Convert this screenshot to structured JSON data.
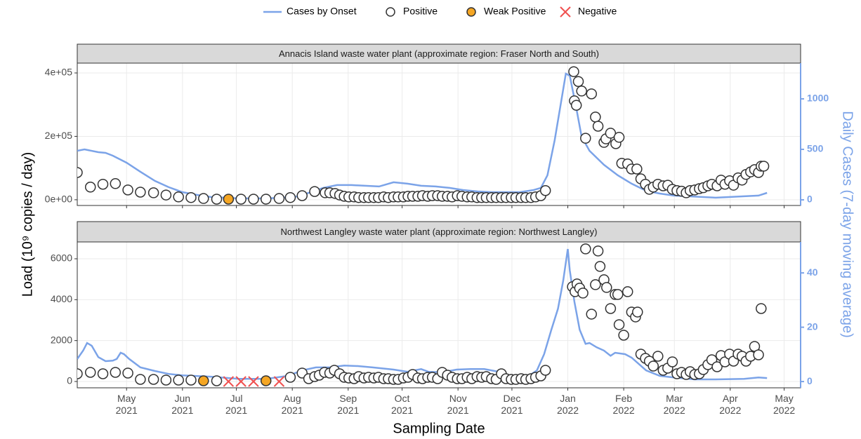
{
  "chart_data": {
    "type": "scatter",
    "x_label": "Sampling Date",
    "y_label": "Load (10⁹ copies / day)",
    "y2_label": "Daily Cases (7-day moving average)",
    "grid": true,
    "legend": "top",
    "xlim": [
      2021.254,
      2022.354
    ],
    "xticks": [
      {
        "value": 2021.329,
        "label": "May\n2021"
      },
      {
        "value": 2021.414,
        "label": "Jun\n2021"
      },
      {
        "value": 2021.496,
        "label": "Jul\n2021"
      },
      {
        "value": 2021.581,
        "label": "Aug\n2021"
      },
      {
        "value": 2021.666,
        "label": "Sep\n2021"
      },
      {
        "value": 2021.748,
        "label": "Oct\n2021"
      },
      {
        "value": 2021.833,
        "label": "Nov\n2021"
      },
      {
        "value": 2021.915,
        "label": "Dec\n2021"
      },
      {
        "value": 2022.0,
        "label": "Jan\n2022"
      },
      {
        "value": 2022.085,
        "label": "Feb\n2022"
      },
      {
        "value": 2022.162,
        "label": "Mar\n2022"
      },
      {
        "value": 2022.247,
        "label": "Apr\n2022"
      },
      {
        "value": 2022.329,
        "label": "May\n2022"
      }
    ],
    "series": [
      {
        "name": "Cases by Onset",
        "color": "#7ba3e8",
        "marker": "line"
      },
      {
        "name": "Positive",
        "color": "#ffffff",
        "marker": "circle"
      },
      {
        "name": "Weak Positive",
        "color": "#f5a623",
        "marker": "circle"
      },
      {
        "name": "Negative",
        "color": "#f0504f",
        "marker": "x"
      }
    ],
    "panels": [
      {
        "title": "Annacis Island waste water plant (approximate region: Fraser North and South)",
        "ylim": [
          -18000,
          431000
        ],
        "yticks": [
          {
            "value": 0,
            "label": "0e+00"
          },
          {
            "value": 200000,
            "label": "2e+05"
          },
          {
            "value": 400000,
            "label": "4e+05"
          }
        ],
        "y2lim": [
          -56,
          1354
        ],
        "y2ticks": [
          0,
          500,
          1000
        ],
        "series": [
          {
            "axis": "y2",
            "x": [
              2021.254,
              2021.265,
              2021.286,
              2021.297,
              2021.308,
              2021.329,
              2021.35,
              2021.372,
              2021.393,
              2021.414,
              2021.436,
              2021.457,
              2021.5,
              2021.542,
              2021.585,
              2021.606,
              2021.628,
              2021.649,
              2021.671,
              2021.692,
              2021.713,
              2021.735,
              2021.756,
              2021.777,
              2021.799,
              2021.82,
              2021.841,
              2021.863,
              2021.884,
              2021.905,
              2021.927,
              2021.948,
              2021.959,
              2021.969,
              2021.98,
              2021.989,
              2021.997,
              2022.003,
              2022.012,
              2022.021,
              2022.033,
              2022.055,
              2022.076,
              2022.097,
              2022.119,
              2022.14,
              2022.161,
              2022.183,
              2022.204,
              2022.225,
              2022.247,
              2022.268,
              2022.29,
              2022.303
            ],
            "values": [
              486,
              500,
              472,
              465,
              437,
              368,
              278,
              188,
              125,
              76,
              49,
              28,
              14,
              14,
              28,
              69,
              118,
              146,
              146,
              139,
              132,
              174,
              160,
              139,
              132,
              118,
              97,
              83,
              76,
              76,
              76,
              97,
              118,
              243,
              590,
              938,
              1250,
              1229,
              938,
              625,
              486,
              347,
              243,
              160,
              90,
              62,
              42,
              35,
              28,
              21,
              28,
              35,
              42,
              69
            ]
          },
          {
            "x": [
              2021.254,
              2021.274,
              2021.293,
              2021.312,
              2021.331,
              2021.35,
              2021.37,
              2021.389,
              2021.408,
              2021.427,
              2021.446,
              2021.466,
              2021.503,
              2021.522,
              2021.541,
              2021.561,
              2021.578,
              2021.596,
              2021.615,
              2021.631,
              2021.638,
              2021.646,
              2021.653,
              2021.66,
              2021.667,
              2021.675,
              2021.682,
              2021.69,
              2021.697,
              2021.705,
              2021.712,
              2021.72,
              2021.727,
              2021.735,
              2021.742,
              2021.75,
              2021.757,
              2021.764,
              2021.772,
              2021.779,
              2021.787,
              2021.794,
              2021.802,
              2021.809,
              2021.817,
              2021.824,
              2021.832,
              2021.839,
              2021.847,
              2021.854,
              2021.862,
              2021.869,
              2021.876,
              2021.884,
              2021.891,
              2021.899,
              2021.906,
              2021.914,
              2021.921,
              2021.929,
              2021.936,
              2021.944,
              2021.951,
              2021.959,
              2021.966,
              2022.009,
              2022.01,
              2022.013,
              2022.016,
              2022.021,
              2022.027,
              2022.036,
              2022.042,
              2022.046,
              2022.055,
              2022.058,
              2022.065,
              2022.073,
              2022.078,
              2022.082,
              2022.091,
              2022.097,
              2022.105,
              2022.111,
              2022.118,
              2022.124,
              2022.13,
              2022.137,
              2022.145,
              2022.152,
              2022.159,
              2022.166,
              2022.173,
              2022.18,
              2022.186,
              2022.193,
              2022.2,
              2022.206,
              2022.213,
              2022.219,
              2022.227,
              2022.233,
              2022.239,
              2022.246,
              2022.252,
              2022.259,
              2022.265,
              2022.271,
              2022.278,
              2022.284,
              2022.29,
              2022.294,
              2022.298
            ],
            "values": [
              86000,
              40000,
              49000,
              51000,
              31000,
              24000,
              22000,
              15000,
              9000,
              7000,
              4000,
              2000,
              2000,
              2000,
              2000,
              4000,
              7000,
              13000,
              26000,
              22000,
              22000,
              20000,
              15000,
              11000,
              9000,
              9000,
              7000,
              7000,
              7000,
              7000,
              7000,
              9000,
              7000,
              9000,
              9000,
              9000,
              11000,
              11000,
              11000,
              13000,
              11000,
              13000,
              13000,
              11000,
              11000,
              9000,
              13000,
              11000,
              9000,
              9000,
              7000,
              7000,
              7000,
              7000,
              7000,
              7000,
              7000,
              7000,
              7000,
              7000,
              7000,
              7000,
              9000,
              13000,
              29000,
              404000,
              312000,
              298000,
              373000,
              343000,
              194000,
              334000,
              261000,
              232000,
              181000,
              192000,
              210000,
              177000,
              197000,
              115000,
              113000,
              97000,
              97000,
              66000,
              49000,
              33000,
              40000,
              49000,
              44000,
              46000,
              33000,
              29000,
              27000,
              22000,
              29000,
              31000,
              35000,
              38000,
              44000,
              49000,
              44000,
              62000,
              49000,
              60000,
              46000,
              69000,
              62000,
              80000,
              88000,
              95000,
              86000,
              106000,
              106000
            ]
          },
          {
            "x": [
              2021.484
            ],
            "values": [
              2000
            ]
          },
          {
            "x": [],
            "values": []
          }
        ]
      },
      {
        "title": "Northwest Langley waste water plant (approximate region: Northwest Langley)",
        "ylim": [
          -309,
          6823
        ],
        "yticks": [
          0,
          2000,
          4000,
          6000
        ],
        "y2lim": [
          -2.3,
          51.4
        ],
        "y2ticks": [
          0,
          20,
          40
        ],
        "series": [
          {
            "axis": "y2",
            "x": [
              2021.254,
              2021.263,
              2021.269,
              2021.276,
              2021.286,
              2021.297,
              2021.308,
              2021.314,
              2021.32,
              2021.325,
              2021.333,
              2021.35,
              2021.372,
              2021.393,
              2021.414,
              2021.457,
              2021.5,
              2021.542,
              2021.574,
              2021.596,
              2021.617,
              2021.638,
              2021.66,
              2021.681,
              2021.703,
              2021.735,
              2021.756,
              2021.777,
              2021.788,
              2021.809,
              2021.831,
              2021.852,
              2021.873,
              2021.895,
              2021.916,
              2021.937,
              2021.953,
              2021.964,
              2021.975,
              2021.985,
              2021.993,
              2022.0,
              2022.003,
              2022.01,
              2022.018,
              2022.027,
              2022.033,
              2022.044,
              2022.055,
              2022.065,
              2022.072,
              2022.087,
              2022.097,
              2022.119,
              2022.14,
              2022.161,
              2022.193,
              2022.225,
              2022.268,
              2022.29,
              2022.303
            ],
            "values": [
              8.3,
              11.4,
              14.2,
              13.2,
              9,
              7.5,
              7.7,
              8.3,
              10.6,
              10.1,
              8.3,
              5.2,
              3.9,
              2.8,
              2.3,
              1.8,
              1,
              1,
              2.1,
              4.1,
              5.2,
              5.2,
              5.9,
              5.7,
              5.2,
              4.4,
              3.6,
              4.6,
              3.6,
              3.4,
              4.4,
              4.6,
              4.6,
              3.6,
              1.8,
              1.5,
              4.1,
              10.1,
              19.1,
              26.8,
              37.2,
              48.8,
              41,
              29.4,
              19.1,
              13.9,
              14.2,
              12.6,
              11.4,
              9.5,
              10.6,
              10.1,
              8.8,
              4.1,
              2.1,
              1.5,
              0.8,
              0.8,
              1,
              1.5,
              1.3
            ]
          },
          {
            "x": [
              2021.254,
              2021.274,
              2021.293,
              2021.312,
              2021.331,
              2021.35,
              2021.37,
              2021.389,
              2021.408,
              2021.427,
              2021.466,
              2021.578,
              2021.596,
              2021.606,
              2021.615,
              2021.622,
              2021.63,
              2021.638,
              2021.645,
              2021.653,
              2021.66,
              2021.667,
              2021.675,
              2021.682,
              2021.69,
              2021.697,
              2021.705,
              2021.712,
              2021.72,
              2021.727,
              2021.735,
              2021.742,
              2021.75,
              2021.757,
              2021.764,
              2021.772,
              2021.779,
              2021.787,
              2021.794,
              2021.802,
              2021.809,
              2021.817,
              2021.824,
              2021.832,
              2021.839,
              2021.847,
              2021.854,
              2021.862,
              2021.869,
              2021.876,
              2021.884,
              2021.891,
              2021.899,
              2021.906,
              2021.914,
              2021.921,
              2021.929,
              2021.936,
              2021.944,
              2021.951,
              2021.959,
              2021.966,
              2022.007,
              2022.011,
              2022.014,
              2022.018,
              2022.023,
              2022.027,
              2022.036,
              2022.042,
              2022.046,
              2022.049,
              2022.055,
              2022.059,
              2022.065,
              2022.072,
              2022.076,
              2022.078,
              2022.085,
              2022.091,
              2022.097,
              2022.103,
              2022.106,
              2022.111,
              2022.118,
              2022.124,
              2022.13,
              2022.137,
              2022.145,
              2022.152,
              2022.159,
              2022.166,
              2022.173,
              2022.18,
              2022.186,
              2022.193,
              2022.2,
              2022.206,
              2022.213,
              2022.219,
              2022.227,
              2022.233,
              2022.239,
              2022.246,
              2022.252,
              2022.259,
              2022.265,
              2022.271,
              2022.278,
              2022.284,
              2022.29,
              2022.294
            ],
            "values": [
              377,
              446,
              377,
              446,
              412,
              103,
              103,
              69,
              69,
              69,
              34,
              206,
              412,
              137,
              240,
              309,
              446,
              412,
              549,
              377,
              206,
              172,
              137,
              240,
              172,
              206,
              172,
              206,
              137,
              137,
              103,
              103,
              172,
              206,
              343,
              172,
              137,
              206,
              206,
              137,
              446,
              309,
              206,
              137,
              137,
              206,
              137,
              240,
              206,
              240,
              137,
              103,
              377,
              137,
              103,
              103,
              137,
              103,
              137,
              206,
              274,
              549,
              4631,
              4391,
              4768,
              4563,
              4323,
              6483,
              3293,
              4734,
              6380,
              5626,
              4974,
              4597,
              3567,
              4254,
              4254,
              2779,
              2264,
              4391,
              3396,
              3156,
              3396,
              1338,
              1132,
              995,
              755,
              1235,
              549,
              652,
              961,
              377,
              446,
              343,
              480,
              343,
              377,
              583,
              823,
              1063,
              720,
              1269,
              961,
              1338,
              995,
              1338,
              1235,
              995,
              1235,
              1715,
              1304,
              3567
            ]
          },
          {
            "x": [
              2021.446,
              2021.541
            ],
            "values": [
              34,
              34
            ]
          },
          {
            "x": [
              2021.484,
              2021.503,
              2021.522,
              2021.561
            ],
            "values": [
              0,
              0,
              0,
              0
            ]
          }
        ]
      }
    ]
  }
}
